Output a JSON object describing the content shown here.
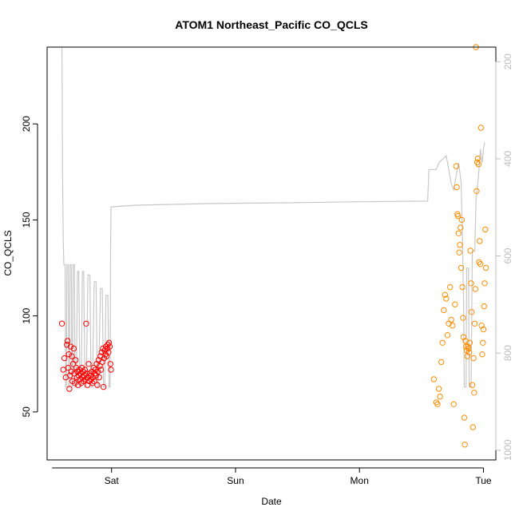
{
  "chart_data": {
    "type": "scatter",
    "title": "ATOM1 Northeast_Pacific CO_QCLS",
    "xlabel": "Date",
    "ylabel": "CO_QCLS",
    "x_ticks": [
      "Sat",
      "Sun",
      "Mon",
      "Tue"
    ],
    "x_range_days": [
      -0.52,
      3.1
    ],
    "ylim": [
      25,
      240
    ],
    "y_ticks": [
      50,
      100,
      150,
      200
    ],
    "y2_ticks": [
      200,
      400,
      600,
      800,
      1000
    ],
    "y2lim": [
      1020,
      170
    ],
    "y2_inverted": true,
    "colors": {
      "series1": "#ff0000",
      "series2": "#ff8c00",
      "profile": "#c8c8c8",
      "axis": "#000000",
      "axis2": "#bdbdbd"
    },
    "series": [
      {
        "points": [
          [
            -0.4,
            96
          ],
          [
            -0.39,
            72
          ],
          [
            -0.38,
            78
          ],
          [
            -0.37,
            68
          ],
          [
            -0.36,
            85
          ],
          [
            -0.355,
            87
          ],
          [
            -0.35,
            73
          ],
          [
            -0.345,
            80
          ],
          [
            -0.34,
            62
          ],
          [
            -0.335,
            69
          ],
          [
            -0.33,
            84
          ],
          [
            -0.325,
            71
          ],
          [
            -0.32,
            79
          ],
          [
            -0.315,
            66
          ],
          [
            -0.31,
            75
          ],
          [
            -0.305,
            83
          ],
          [
            -0.3,
            70
          ],
          [
            -0.295,
            65
          ],
          [
            -0.29,
            77
          ],
          [
            -0.285,
            73
          ],
          [
            -0.28,
            68
          ],
          [
            -0.275,
            71
          ],
          [
            -0.27,
            64
          ],
          [
            -0.265,
            69
          ],
          [
            -0.26,
            72
          ],
          [
            -0.255,
            67
          ],
          [
            -0.25,
            70
          ],
          [
            -0.245,
            65
          ],
          [
            -0.24,
            73
          ],
          [
            -0.235,
            68
          ],
          [
            -0.23,
            71
          ],
          [
            -0.225,
            66
          ],
          [
            -0.22,
            69
          ],
          [
            -0.215,
            72
          ],
          [
            -0.21,
            67
          ],
          [
            -0.205,
            96
          ],
          [
            -0.2,
            70
          ],
          [
            -0.195,
            64
          ],
          [
            -0.19,
            68
          ],
          [
            -0.185,
            75
          ],
          [
            -0.18,
            66
          ],
          [
            -0.175,
            70
          ],
          [
            -0.17,
            69
          ],
          [
            -0.165,
            67
          ],
          [
            -0.16,
            71
          ],
          [
            -0.155,
            65
          ],
          [
            -0.15,
            68
          ],
          [
            -0.145,
            73
          ],
          [
            -0.14,
            66
          ],
          [
            -0.135,
            70
          ],
          [
            -0.13,
            72
          ],
          [
            -0.125,
            69
          ],
          [
            -0.12,
            75
          ],
          [
            -0.115,
            64
          ],
          [
            -0.11,
            71
          ],
          [
            -0.105,
            77
          ],
          [
            -0.1,
            68
          ],
          [
            -0.095,
            74
          ],
          [
            -0.09,
            79
          ],
          [
            -0.085,
            72
          ],
          [
            -0.08,
            81
          ],
          [
            -0.075,
            76
          ],
          [
            -0.07,
            83
          ],
          [
            -0.065,
            63
          ],
          [
            -0.06,
            78
          ],
          [
            -0.055,
            82
          ],
          [
            -0.05,
            80
          ],
          [
            -0.045,
            84
          ],
          [
            -0.04,
            79
          ],
          [
            -0.035,
            83
          ],
          [
            -0.03,
            85
          ],
          [
            -0.025,
            81
          ],
          [
            -0.02,
            86
          ],
          [
            -0.015,
            84
          ],
          [
            -0.01,
            75
          ],
          [
            -0.005,
            72
          ]
        ]
      },
      {
        "points": [
          [
            2.6,
            67
          ],
          [
            2.62,
            55
          ],
          [
            2.63,
            54
          ],
          [
            2.64,
            62
          ],
          [
            2.65,
            58
          ],
          [
            2.66,
            76
          ],
          [
            2.67,
            86
          ],
          [
            2.68,
            103
          ],
          [
            2.69,
            111
          ],
          [
            2.7,
            109
          ],
          [
            2.71,
            90
          ],
          [
            2.72,
            96
          ],
          [
            2.73,
            115
          ],
          [
            2.74,
            98
          ],
          [
            2.75,
            95
          ],
          [
            2.76,
            54
          ],
          [
            2.77,
            106
          ],
          [
            2.78,
            178
          ],
          [
            2.785,
            167
          ],
          [
            2.79,
            153
          ],
          [
            2.795,
            152
          ],
          [
            2.8,
            143
          ],
          [
            2.805,
            133
          ],
          [
            2.81,
            137
          ],
          [
            2.815,
            146
          ],
          [
            2.82,
            125
          ],
          [
            2.825,
            150
          ],
          [
            2.83,
            115
          ],
          [
            2.835,
            99
          ],
          [
            2.84,
            89
          ],
          [
            2.845,
            47
          ],
          [
            2.85,
            33
          ],
          [
            2.855,
            87
          ],
          [
            2.86,
            84
          ],
          [
            2.865,
            82
          ],
          [
            2.87,
            79
          ],
          [
            2.875,
            84
          ],
          [
            2.88,
            83
          ],
          [
            2.885,
            81
          ],
          [
            2.89,
            86
          ],
          [
            2.895,
            134
          ],
          [
            2.9,
            117
          ],
          [
            2.905,
            102
          ],
          [
            2.91,
            64
          ],
          [
            2.915,
            42
          ],
          [
            2.92,
            78
          ],
          [
            2.925,
            60
          ],
          [
            2.93,
            96
          ],
          [
            2.935,
            114
          ],
          [
            2.94,
            240
          ],
          [
            2.945,
            165
          ],
          [
            2.95,
            180
          ],
          [
            2.955,
            182
          ],
          [
            2.96,
            179
          ],
          [
            2.965,
            128
          ],
          [
            2.97,
            139
          ],
          [
            2.975,
            127
          ],
          [
            2.98,
            198
          ],
          [
            2.985,
            95
          ],
          [
            2.99,
            80
          ],
          [
            2.995,
            86
          ],
          [
            3.0,
            93
          ],
          [
            3.005,
            105
          ],
          [
            3.01,
            117
          ],
          [
            3.015,
            145
          ],
          [
            3.02,
            125
          ]
        ]
      }
    ]
  }
}
